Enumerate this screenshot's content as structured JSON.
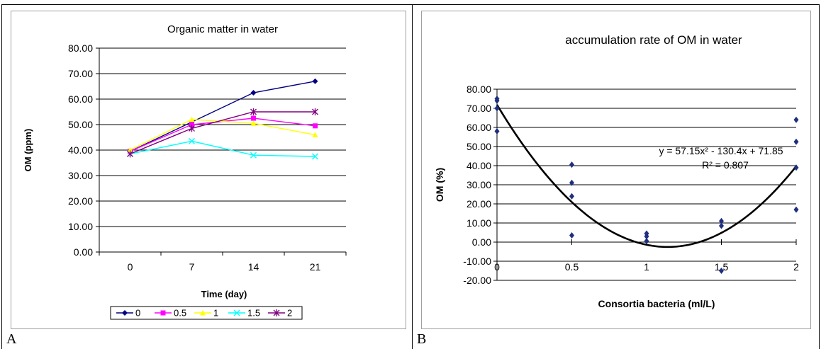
{
  "panels": [
    {
      "letter": "A"
    },
    {
      "letter": "B"
    }
  ],
  "chart_data": [
    {
      "type": "line",
      "title": "Organic matter in water",
      "xlabel": "Time (day)",
      "ylabel": "OM (ppm)",
      "categories": [
        "0",
        "7",
        "14",
        "21"
      ],
      "ylim": [
        0,
        80
      ],
      "yticks": [
        "0.00",
        "10.00",
        "20.00",
        "30.00",
        "40.00",
        "50.00",
        "60.00",
        "70.00",
        "80.00"
      ],
      "grid": true,
      "legend_position": "bottom",
      "series": [
        {
          "name": "0",
          "color": "#000080",
          "marker": "diamond",
          "values": [
            39.5,
            51.0,
            62.5,
            67.0
          ]
        },
        {
          "name": "0.5",
          "color": "#ff00ff",
          "marker": "square",
          "values": [
            39.5,
            50.0,
            52.5,
            49.5
          ]
        },
        {
          "name": "1",
          "color": "#ffff00",
          "marker": "triangle",
          "values": [
            40.0,
            52.0,
            50.5,
            46.0
          ]
        },
        {
          "name": "1.5",
          "color": "#00ffff",
          "marker": "x",
          "values": [
            38.5,
            43.5,
            38.0,
            37.5
          ]
        },
        {
          "name": "2",
          "color": "#800080",
          "marker": "star",
          "values": [
            38.5,
            48.5,
            55.0,
            55.0
          ]
        }
      ]
    },
    {
      "type": "scatter",
      "title": "accumulation rate of OM in water",
      "xlabel": "Consortia bacteria (ml/L)",
      "ylabel": "OM (%)",
      "xlim": [
        0,
        2
      ],
      "ylim": [
        -20,
        80
      ],
      "xticks": [
        "0",
        "0.5",
        "1",
        "1.5",
        "2"
      ],
      "yticks": [
        "-20.00",
        "-10.00",
        "0.00",
        "10.00",
        "20.00",
        "30.00",
        "40.00",
        "50.00",
        "60.00",
        "70.00",
        "80.00"
      ],
      "grid": true,
      "point_color": "#1f2f7f",
      "points": [
        {
          "x": 0,
          "y": 75.0
        },
        {
          "x": 0,
          "y": 74.0
        },
        {
          "x": 0,
          "y": 70.0
        },
        {
          "x": 0,
          "y": 58.0
        },
        {
          "x": 0.5,
          "y": 40.5
        },
        {
          "x": 0.5,
          "y": 31.0
        },
        {
          "x": 0.5,
          "y": 24.0
        },
        {
          "x": 0.5,
          "y": 3.5
        },
        {
          "x": 1,
          "y": 4.5
        },
        {
          "x": 1,
          "y": 3.0
        },
        {
          "x": 1,
          "y": 0.5
        },
        {
          "x": 1.5,
          "y": 11.0
        },
        {
          "x": 1.5,
          "y": 8.5
        },
        {
          "x": 1.5,
          "y": -15.0
        },
        {
          "x": 2,
          "y": 64.0
        },
        {
          "x": 2,
          "y": 52.5
        },
        {
          "x": 2,
          "y": 39.0
        },
        {
          "x": 2,
          "y": 17.0
        }
      ],
      "trendline": {
        "type": "polynomial",
        "a": 57.15,
        "b": -130.4,
        "c": 71.85
      },
      "equation_text": "y = 57.15x² - 130.4x + 71.85",
      "r2_text": "R² = 0.807"
    }
  ]
}
